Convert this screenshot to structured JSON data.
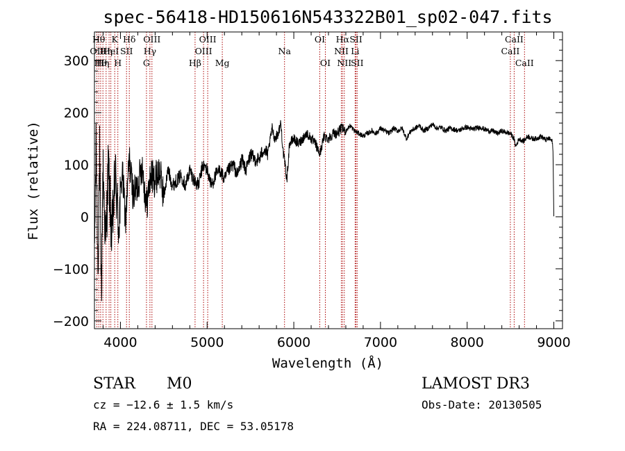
{
  "chart_data": {
    "type": "line",
    "title": "spec-56418-HD150616N543322B01_sp02-047.fits",
    "xlabel": "Wavelength (Å)",
    "ylabel": "Flux (relative)",
    "xlim": [
      3700,
      9100
    ],
    "ylim": [
      -215,
      355
    ],
    "x_ticks": [
      4000,
      5000,
      6000,
      7000,
      8000,
      9000
    ],
    "x_tick_labels": [
      "4000",
      "5000",
      "6000",
      "7000",
      "8000",
      "9000"
    ],
    "y_ticks": [
      -200,
      -100,
      0,
      100,
      200,
      300
    ],
    "y_tick_labels": [
      "−200",
      "−100",
      "0",
      "100",
      "200",
      "300"
    ],
    "grid": false,
    "series": [
      {
        "name": "spectrum",
        "color": "#000000",
        "x": [
          3700,
          3720,
          3740,
          3760,
          3780,
          3800,
          3830,
          3860,
          3900,
          3940,
          3980,
          4020,
          4060,
          4100,
          4150,
          4200,
          4250,
          4300,
          4350,
          4400,
          4450,
          4500,
          4550,
          4600,
          4650,
          4700,
          4750,
          4800,
          4850,
          4900,
          4950,
          5000,
          5050,
          5100,
          5150,
          5200,
          5250,
          5300,
          5350,
          5400,
          5450,
          5500,
          5550,
          5600,
          5650,
          5700,
          5750,
          5780,
          5820,
          5850,
          5880,
          5900,
          5920,
          5950,
          6000,
          6050,
          6100,
          6150,
          6200,
          6250,
          6300,
          6350,
          6400,
          6450,
          6500,
          6550,
          6600,
          6650,
          6700,
          6750,
          6800,
          6850,
          6900,
          6950,
          7000,
          7050,
          7100,
          7150,
          7200,
          7250,
          7300,
          7350,
          7400,
          7450,
          7500,
          7550,
          7600,
          7650,
          7700,
          7750,
          7800,
          7850,
          7900,
          7950,
          8000,
          8050,
          8100,
          8150,
          8200,
          8250,
          8300,
          8350,
          8400,
          8450,
          8500,
          8540,
          8560,
          8600,
          8650,
          8700,
          8750,
          8800,
          8850,
          8900,
          8950,
          8980,
          8990,
          9000
        ],
        "y": [
          -80,
          150,
          -100,
          120,
          -160,
          100,
          -60,
          100,
          -40,
          80,
          -20,
          90,
          -10,
          110,
          40,
          60,
          100,
          20,
          80,
          70,
          90,
          40,
          90,
          60,
          70,
          80,
          60,
          90,
          70,
          60,
          100,
          90,
          60,
          80,
          90,
          70,
          90,
          100,
          80,
          110,
          90,
          120,
          110,
          110,
          130,
          120,
          170,
          150,
          160,
          180,
          120,
          100,
          70,
          140,
          150,
          140,
          150,
          160,
          150,
          140,
          120,
          155,
          150,
          160,
          160,
          170,
          165,
          175,
          165,
          160,
          155,
          160,
          165,
          160,
          170,
          165,
          160,
          170,
          165,
          170,
          150,
          165,
          170,
          175,
          165,
          170,
          178,
          170,
          172,
          165,
          170,
          168,
          165,
          170,
          172,
          168,
          170,
          172,
          168,
          165,
          165,
          160,
          165,
          162,
          160,
          150,
          135,
          150,
          145,
          155,
          150,
          150,
          155,
          148,
          150,
          145,
          130,
          0
        ]
      }
    ],
    "lines": {
      "wavelengths": [
        3727,
        3750,
        3771,
        3798,
        3835,
        3869,
        3889,
        3934,
        3970,
        4070,
        4102,
        4300,
        4340,
        4363,
        4861,
        4959,
        5007,
        5175,
        5893,
        6300,
        6364,
        6548,
        6563,
        6583,
        6708,
        6717,
        6731,
        8498,
        8542,
        8662
      ],
      "color": "#aa0000",
      "labels": [
        {
          "text": "Hθ",
          "wl": 3750,
          "row": 1
        },
        {
          "text": "K",
          "wl": 3934,
          "row": 1
        },
        {
          "text": "Hδ",
          "wl": 4102,
          "row": 1
        },
        {
          "text": "OIII",
          "wl": 4363,
          "row": 1
        },
        {
          "text": "OIII",
          "wl": 5007,
          "row": 1
        },
        {
          "text": "OI",
          "wl": 6300,
          "row": 1
        },
        {
          "text": "Hα",
          "wl": 6563,
          "row": 1
        },
        {
          "text": "SII",
          "wl": 6717,
          "row": 1
        },
        {
          "text": "CaII",
          "wl": 8542,
          "row": 1
        },
        {
          "text": "OII",
          "wl": 3727,
          "row": 2
        },
        {
          "text": "Hη",
          "wl": 3835,
          "row": 2
        },
        {
          "text": "HeI",
          "wl": 3889,
          "row": 2
        },
        {
          "text": "SII",
          "wl": 4070,
          "row": 2
        },
        {
          "text": "Hγ",
          "wl": 4340,
          "row": 2
        },
        {
          "text": "OIII",
          "wl": 4959,
          "row": 2
        },
        {
          "text": "Na",
          "wl": 5893,
          "row": 2
        },
        {
          "text": "NII",
          "wl": 6548,
          "row": 2
        },
        {
          "text": "Li",
          "wl": 6708,
          "row": 2
        },
        {
          "text": "CaII",
          "wl": 8498,
          "row": 2
        },
        {
          "text": "Hθ",
          "wl": 3771,
          "row": 3
        },
        {
          "text": "Hη",
          "wl": 3798,
          "row": 3
        },
        {
          "text": "H",
          "wl": 3970,
          "row": 3
        },
        {
          "text": "G",
          "wl": 4300,
          "row": 3
        },
        {
          "text": "Hβ",
          "wl": 4861,
          "row": 3
        },
        {
          "text": "Mg",
          "wl": 5175,
          "row": 3
        },
        {
          "text": "OI",
          "wl": 6364,
          "row": 3
        },
        {
          "text": "NII",
          "wl": 6583,
          "row": 3
        },
        {
          "text": "SII",
          "wl": 6731,
          "row": 3
        },
        {
          "text": "CaII",
          "wl": 8662,
          "row": 3
        }
      ]
    }
  },
  "info": {
    "class_label": "STAR",
    "subclass": "M0",
    "survey": "LAMOST DR3",
    "redshift": "cz = −12.6 ± 1.5 km/s",
    "obs_date": "Obs-Date: 20130505",
    "coords": "RA = 224.08711, DEC =  53.05178"
  }
}
